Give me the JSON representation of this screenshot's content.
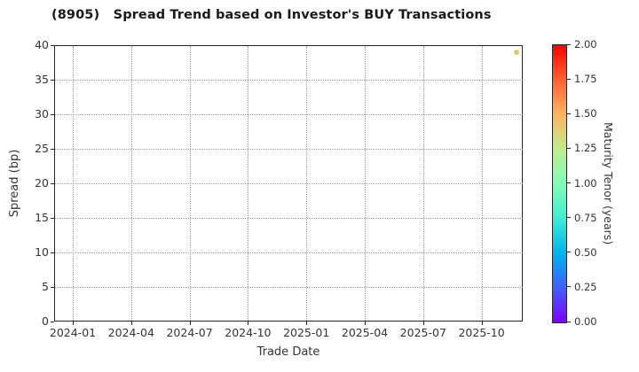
{
  "chart_data": {
    "type": "scatter",
    "title": "(8905)   Spread Trend based on Investor's BUY Transactions",
    "xlabel": "Trade Date",
    "ylabel": "Spread (bp)",
    "ylim": [
      0,
      40
    ],
    "yticks": [
      0,
      5,
      10,
      15,
      20,
      25,
      30,
      35,
      40
    ],
    "xticks": [
      "2024-01",
      "2024-04",
      "2024-07",
      "2024-10",
      "2025-01",
      "2025-04",
      "2025-07",
      "2025-10"
    ],
    "grid": true,
    "grid_style": "dotted",
    "points": [
      {
        "date": "2025-11-25",
        "spread_bp": 39,
        "maturity_tenor_years": 1.4,
        "color": "#e3c66b"
      }
    ],
    "colorbar": {
      "label": "Maturity Tenor (years)",
      "min": 0.0,
      "max": 2.0,
      "colormap": "rainbow",
      "ticks": [
        "2.00",
        "1.75",
        "1.50",
        "1.25",
        "1.00",
        "0.75",
        "0.50",
        "0.25",
        "0.00"
      ],
      "gradient_bottom_to_top": [
        "#8000ff",
        "#4060fa",
        "#00b5ec",
        "#40ecd5",
        "#80ffb5",
        "#bfec8e",
        "#ffb462",
        "#ff6232",
        "#ff0000"
      ]
    }
  }
}
